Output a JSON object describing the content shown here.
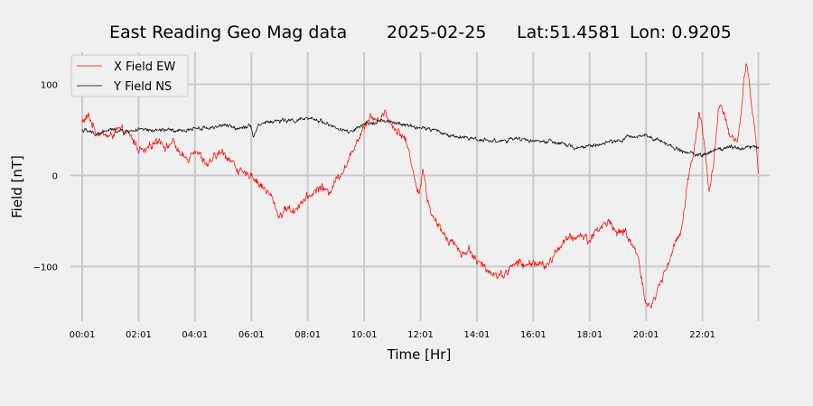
{
  "chart_data": {
    "type": "line",
    "title_parts": [
      "East Reading Geo Mag data",
      "2025-02-25",
      "Lat:51.4581",
      "Lon: 0.9205"
    ],
    "xlabel": "Time  [Hr]",
    "ylabel": "Field  [nT]",
    "xlim": [
      -0.4,
      24.4
    ],
    "ylim": [
      -160,
      135
    ],
    "x_ticks": [
      {
        "value": 0.0167,
        "label": "00:01"
      },
      {
        "value": 2.0167,
        "label": "02:01"
      },
      {
        "value": 4.0167,
        "label": "04:01"
      },
      {
        "value": 6.0167,
        "label": "06:01"
      },
      {
        "value": 8.0167,
        "label": "08:01"
      },
      {
        "value": 10.0167,
        "label": "10:01"
      },
      {
        "value": 12.0167,
        "label": "12:01"
      },
      {
        "value": 14.0167,
        "label": "14:01"
      },
      {
        "value": 16.0167,
        "label": "16:01"
      },
      {
        "value": 18.0167,
        "label": "18:01"
      },
      {
        "value": 20.0167,
        "label": "20:01"
      },
      {
        "value": 22.0167,
        "label": "22:01"
      }
    ],
    "extra_x_gridlines": [
      24.0
    ],
    "y_ticks": [
      {
        "value": 100,
        "label": "100"
      },
      {
        "value": 0,
        "label": "0"
      },
      {
        "value": -100,
        "label": "−100"
      }
    ],
    "grid": true,
    "legend_position": "top-left",
    "series": [
      {
        "name": "X Field EW",
        "color": "#ff0000",
        "x": [
          0.0,
          0.25,
          0.5,
          0.75,
          1.0,
          1.25,
          1.5,
          1.75,
          2.0,
          2.25,
          2.5,
          2.75,
          3.0,
          3.25,
          3.5,
          3.75,
          4.0,
          4.25,
          4.5,
          4.75,
          5.0,
          5.25,
          5.5,
          5.75,
          6.0,
          6.25,
          6.5,
          6.75,
          7.0,
          7.15,
          7.3,
          7.5,
          7.75,
          8.0,
          8.25,
          8.5,
          8.75,
          9.0,
          9.25,
          9.5,
          9.65,
          9.75,
          9.85,
          10.0,
          10.25,
          10.5,
          10.75,
          11.0,
          11.25,
          11.5,
          11.75,
          11.9,
          12.0,
          12.1,
          12.25,
          12.4,
          12.5,
          12.75,
          13.0,
          13.25,
          13.5,
          13.75,
          14.0,
          14.25,
          14.5,
          14.75,
          15.0,
          15.25,
          15.5,
          15.75,
          16.0,
          16.25,
          16.5,
          16.75,
          17.0,
          17.25,
          17.5,
          17.75,
          18.0,
          18.25,
          18.5,
          18.75,
          19.0,
          19.25,
          19.5,
          19.75,
          19.9,
          20.0,
          20.1,
          20.25,
          20.5,
          20.75,
          21.0,
          21.25,
          21.4,
          21.5,
          21.6,
          21.75,
          21.9,
          22.0,
          22.1,
          22.25,
          22.4,
          22.5,
          22.6,
          22.75,
          23.0,
          23.25,
          23.4,
          23.5,
          23.6,
          23.75,
          23.9,
          24.0
        ],
        "values": [
          58,
          65,
          48,
          46,
          42,
          50,
          48,
          42,
          30,
          25,
          35,
          40,
          30,
          38,
          22,
          18,
          30,
          20,
          10,
          22,
          25,
          18,
          8,
          0,
          2,
          -8,
          -15,
          -25,
          -45,
          -40,
          -35,
          -40,
          -30,
          -25,
          -18,
          -12,
          -20,
          -5,
          5,
          18,
          30,
          40,
          42,
          55,
          65,
          60,
          70,
          55,
          48,
          38,
          8,
          -20,
          -15,
          10,
          -25,
          -40,
          -50,
          -60,
          -70,
          -75,
          -88,
          -80,
          -95,
          -100,
          -105,
          -110,
          -108,
          -100,
          -95,
          -100,
          -95,
          -98,
          -100,
          -88,
          -75,
          -70,
          -68,
          -65,
          -72,
          -60,
          -55,
          -50,
          -65,
          -60,
          -75,
          -90,
          -120,
          -140,
          -145,
          -140,
          -120,
          -100,
          -80,
          -60,
          -30,
          -5,
          10,
          35,
          70,
          55,
          30,
          -20,
          10,
          45,
          75,
          70,
          42,
          35,
          70,
          110,
          120,
          80,
          45,
          5
        ]
      },
      {
        "name": "Y Field NS",
        "color": "#000000",
        "x": [
          0.0,
          0.25,
          0.5,
          0.75,
          1.0,
          1.5,
          2.0,
          2.5,
          3.0,
          3.5,
          4.0,
          4.5,
          5.0,
          5.5,
          6.0,
          6.1,
          6.25,
          6.5,
          7.0,
          7.5,
          8.0,
          8.5,
          9.0,
          9.5,
          10.0,
          10.5,
          11.0,
          11.5,
          12.0,
          12.5,
          13.0,
          13.5,
          14.0,
          14.5,
          15.0,
          15.5,
          16.0,
          16.5,
          17.0,
          17.5,
          18.0,
          18.5,
          19.0,
          19.5,
          20.0,
          20.5,
          21.0,
          21.5,
          22.0,
          22.5,
          23.0,
          23.5,
          24.0
        ],
        "values": [
          50,
          48,
          45,
          47,
          50,
          48,
          50,
          49,
          50,
          48,
          52,
          52,
          55,
          52,
          55,
          42,
          55,
          58,
          60,
          60,
          62,
          60,
          52,
          47,
          55,
          60,
          58,
          55,
          52,
          50,
          44,
          42,
          40,
          38,
          38,
          40,
          38,
          37,
          35,
          30,
          32,
          35,
          38,
          42,
          45,
          38,
          30,
          25,
          22,
          28,
          32,
          30,
          32
        ]
      }
    ]
  }
}
